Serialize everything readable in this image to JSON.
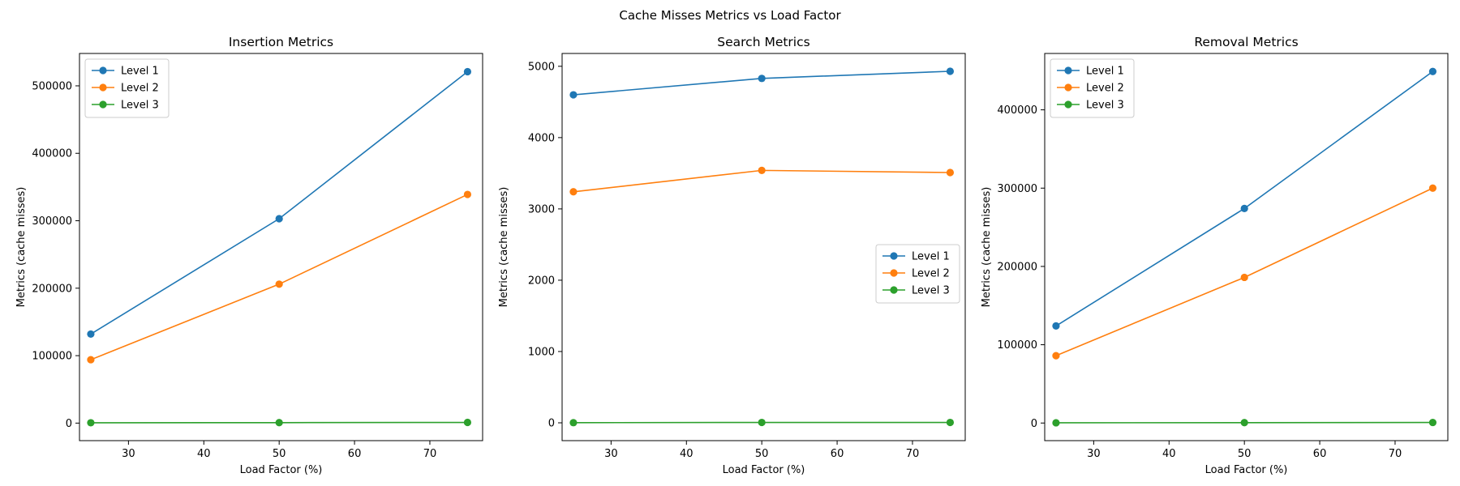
{
  "figure": {
    "title": "Cache Misses Metrics vs Load Factor"
  },
  "colors": {
    "level1": "#1f77b4",
    "level2": "#ff7f0e",
    "level3": "#2ca02c"
  },
  "chart_data": [
    {
      "type": "line",
      "title": "Insertion Metrics",
      "xlabel": "Load Factor (%)",
      "ylabel": "Metrics (cache misses)",
      "x": [
        25,
        50,
        75
      ],
      "xlim": [
        23.5,
        77
      ],
      "ylim": [
        -26000,
        548000
      ],
      "xticks": [
        30,
        40,
        50,
        60,
        70
      ],
      "yticks": [
        0,
        100000,
        200000,
        300000,
        400000,
        500000
      ],
      "legend": "top-left",
      "series": [
        {
          "name": "Level 1",
          "values": [
            132000,
            303000,
            521000
          ]
        },
        {
          "name": "Level 2",
          "values": [
            94000,
            206000,
            339000
          ]
        },
        {
          "name": "Level 3",
          "values": [
            500,
            700,
            1000
          ]
        }
      ]
    },
    {
      "type": "line",
      "title": "Search Metrics",
      "xlabel": "Load Factor (%)",
      "ylabel": "Metrics (cache misses)",
      "x": [
        25,
        50,
        75
      ],
      "xlim": [
        23.5,
        77
      ],
      "ylim": [
        -250,
        5180
      ],
      "xticks": [
        30,
        40,
        50,
        60,
        70
      ],
      "yticks": [
        0,
        1000,
        2000,
        3000,
        4000,
        5000
      ],
      "legend": "center-right",
      "series": [
        {
          "name": "Level 1",
          "values": [
            4600,
            4830,
            4930
          ]
        },
        {
          "name": "Level 2",
          "values": [
            3240,
            3540,
            3510
          ]
        },
        {
          "name": "Level 3",
          "values": [
            2,
            5,
            5
          ]
        }
      ]
    },
    {
      "type": "line",
      "title": "Removal Metrics",
      "xlabel": "Load Factor (%)",
      "ylabel": "Metrics (cache misses)",
      "x": [
        25,
        50,
        75
      ],
      "xlim": [
        23.5,
        77
      ],
      "ylim": [
        -22500,
        472000
      ],
      "xticks": [
        30,
        40,
        50,
        60,
        70
      ],
      "yticks": [
        0,
        100000,
        200000,
        300000,
        400000
      ],
      "legend": "top-left",
      "series": [
        {
          "name": "Level 1",
          "values": [
            124000,
            274000,
            449000
          ]
        },
        {
          "name": "Level 2",
          "values": [
            86000,
            186000,
            300000
          ]
        },
        {
          "name": "Level 3",
          "values": [
            300,
            500,
            700
          ]
        }
      ]
    }
  ]
}
